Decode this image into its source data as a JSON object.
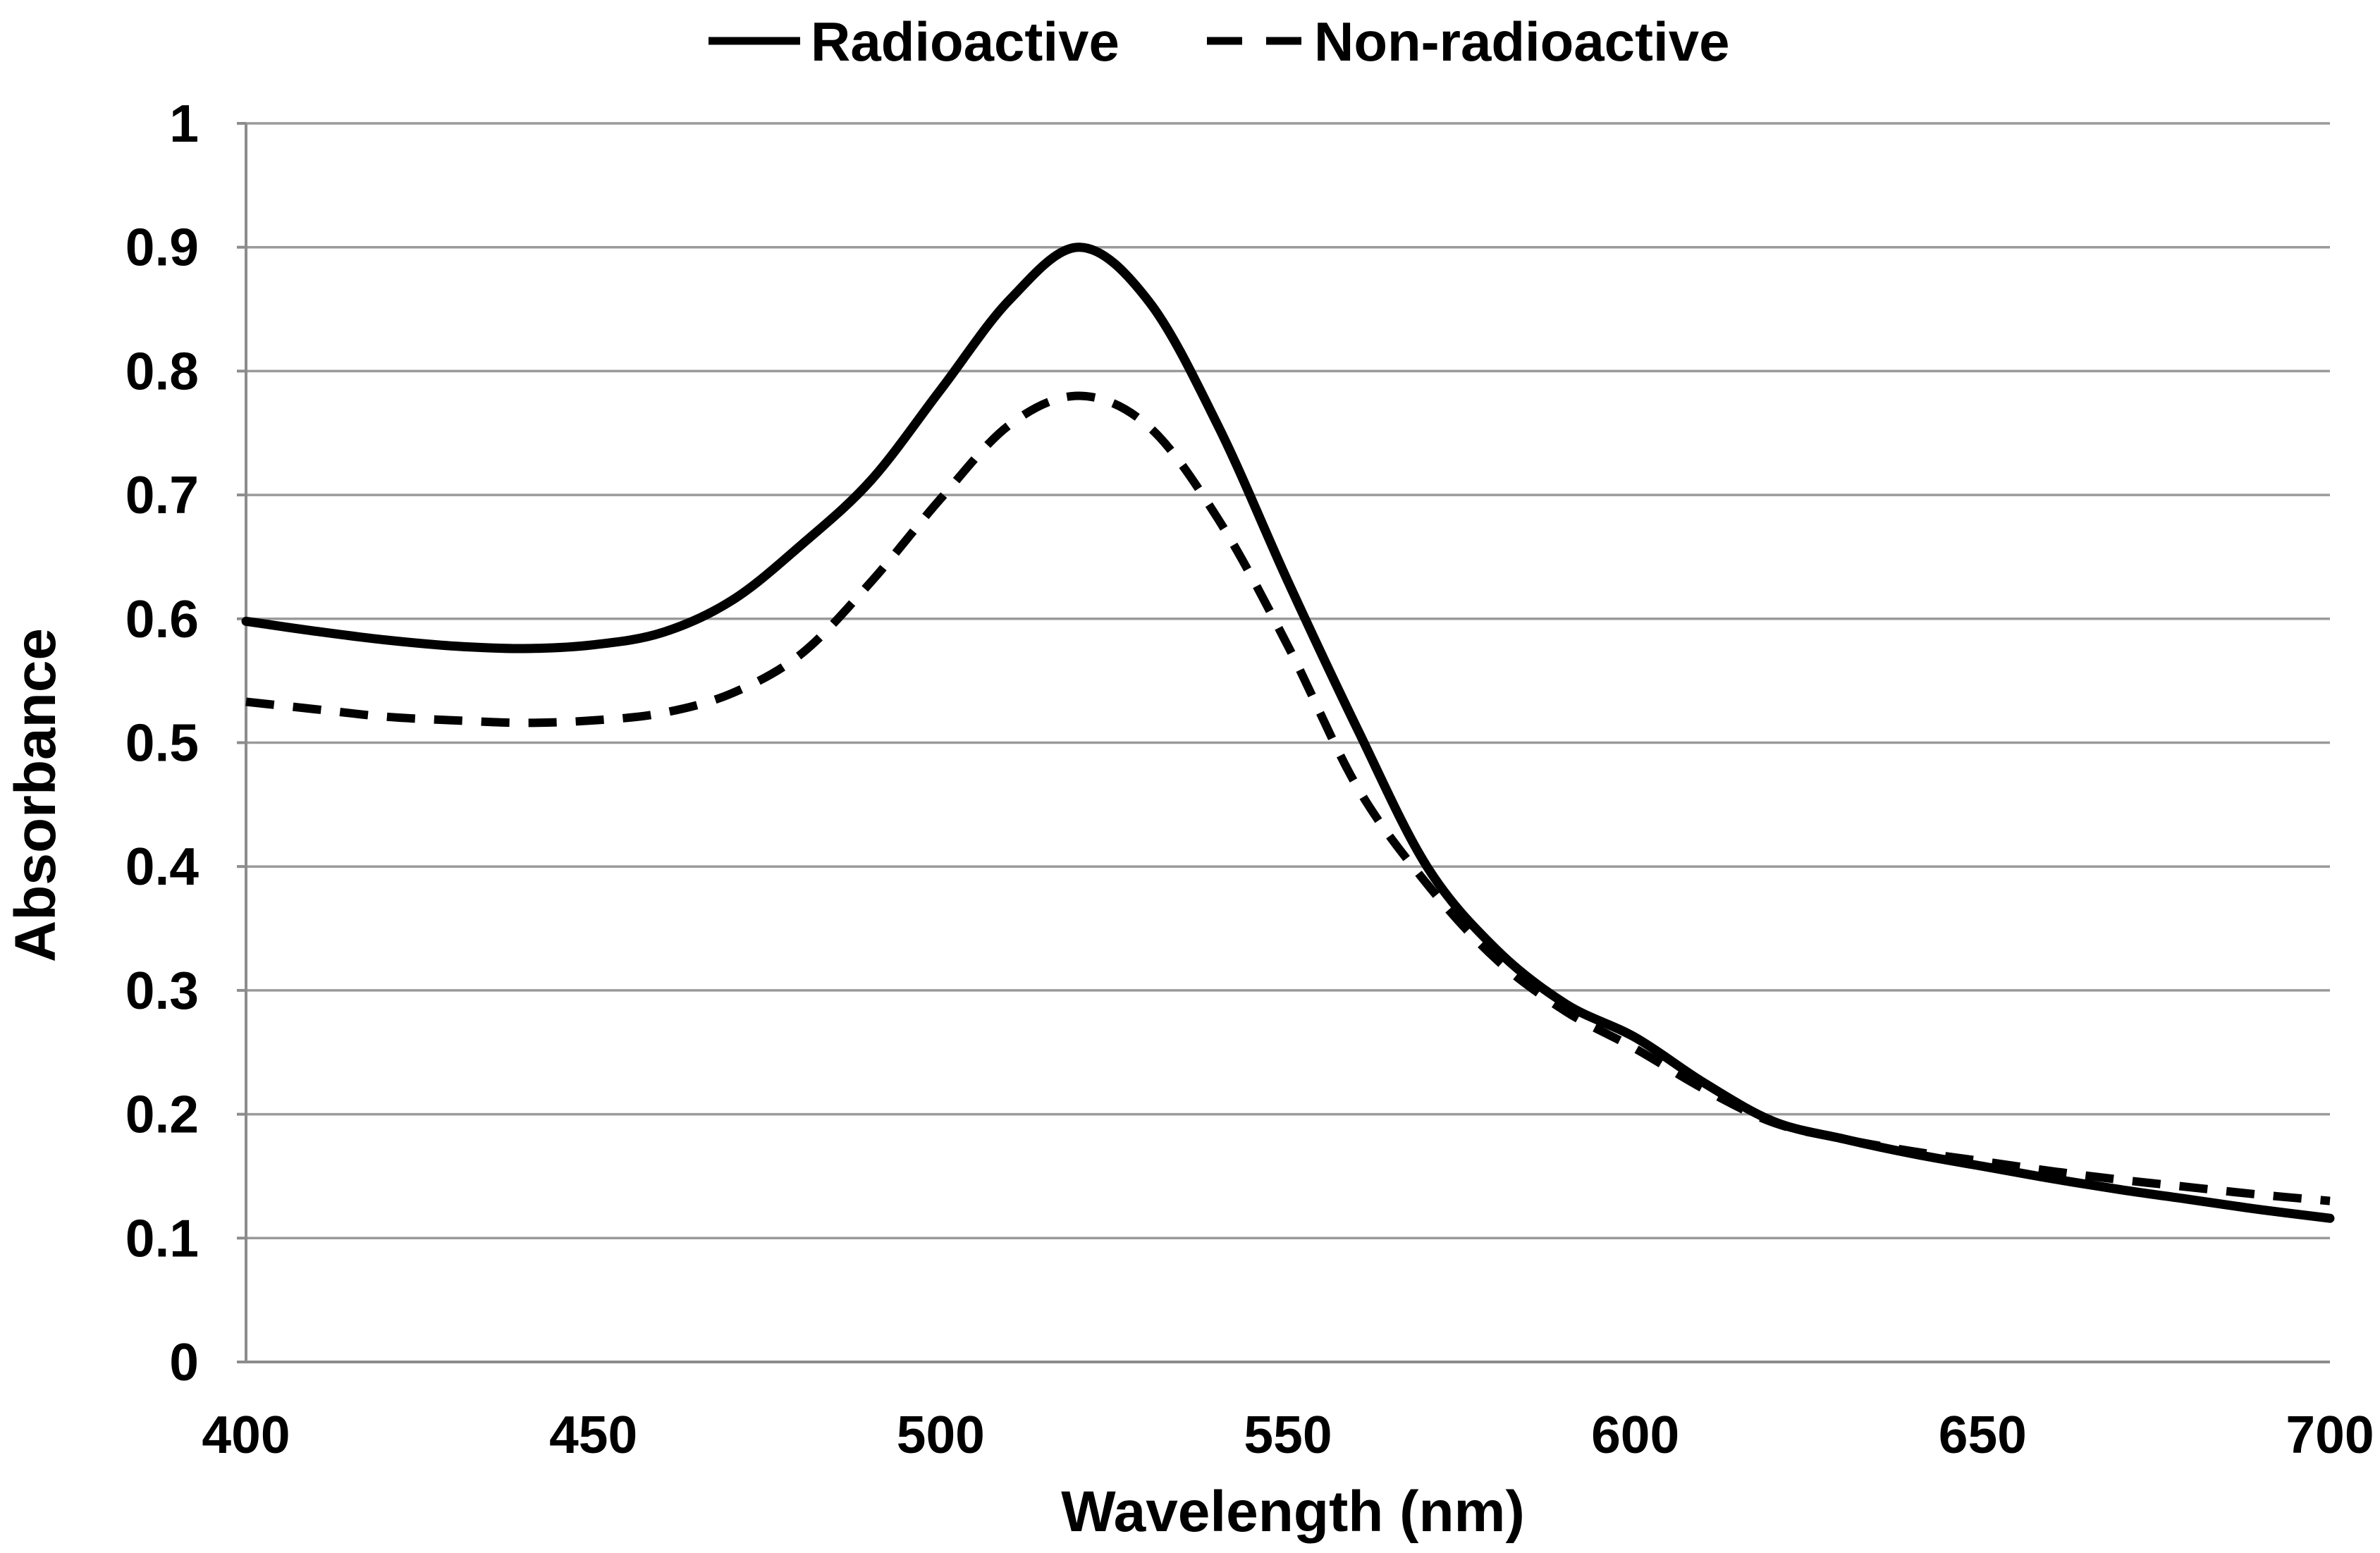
{
  "legend": {
    "items": [
      {
        "label": "Radioactive",
        "style": "solid"
      },
      {
        "label": "Non-radioactive",
        "style": "dashed"
      }
    ]
  },
  "axes": {
    "x_title": "Wavelength (nm)",
    "y_title": "Absorbance",
    "x_ticks": [
      "400",
      "450",
      "500",
      "550",
      "600",
      "650",
      "700"
    ],
    "y_ticks": [
      "1",
      "0.9",
      "0.8",
      "0.7",
      "0.6",
      "0.5",
      "0.4",
      "0.3",
      "0.2",
      "0.1",
      "0"
    ]
  },
  "colors": {
    "line": "#000000",
    "grid": "#9a9a9a",
    "axis": "#8c8c8c",
    "text": "#000000",
    "background": "#ffffff"
  },
  "chart_data": {
    "type": "line",
    "title": "",
    "xlabel": "Wavelength (nm)",
    "ylabel": "Absorbance",
    "xlim": [
      400,
      700
    ],
    "ylim": [
      0,
      1
    ],
    "x_tick_step": 50,
    "y_tick_step": 0.1,
    "grid": "horizontal-only",
    "legend_position": "top-center",
    "x": [
      400,
      410,
      420,
      430,
      440,
      450,
      460,
      470,
      480,
      490,
      500,
      510,
      520,
      530,
      540,
      550,
      560,
      570,
      580,
      590,
      600,
      610,
      620,
      630,
      640,
      650,
      660,
      670,
      680,
      690,
      700
    ],
    "series": [
      {
        "name": "Radioactive",
        "style": "solid",
        "peak": {
          "wavelength": 520,
          "absorbance": 0.9
        },
        "values": [
          0.598,
          0.59,
          0.583,
          0.578,
          0.576,
          0.579,
          0.589,
          0.615,
          0.66,
          0.712,
          0.785,
          0.858,
          0.9,
          0.856,
          0.755,
          0.63,
          0.511,
          0.4,
          0.333,
          0.289,
          0.262,
          0.225,
          0.194,
          0.18,
          0.168,
          0.158,
          0.148,
          0.139,
          0.131,
          0.123,
          0.116
        ]
      },
      {
        "name": "Non-radioactive",
        "style": "dashed",
        "peak": {
          "wavelength": 520,
          "absorbance": 0.78
        },
        "values": [
          0.533,
          0.527,
          0.521,
          0.518,
          0.516,
          0.518,
          0.524,
          0.54,
          0.572,
          0.63,
          0.697,
          0.757,
          0.78,
          0.755,
          0.68,
          0.578,
          0.464,
          0.386,
          0.325,
          0.283,
          0.253,
          0.22,
          0.193,
          0.18,
          0.17,
          0.162,
          0.154,
          0.147,
          0.141,
          0.135,
          0.13
        ]
      }
    ]
  }
}
